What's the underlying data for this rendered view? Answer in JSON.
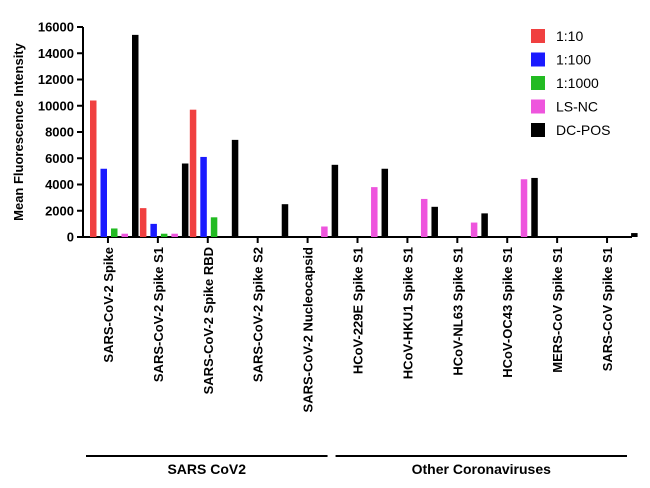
{
  "chart_data": {
    "type": "bar",
    "ylabel": "Mean Fluorescence Intensity",
    "ylim": [
      0,
      16000
    ],
    "yticks": [
      0,
      2000,
      4000,
      6000,
      8000,
      10000,
      12000,
      14000,
      16000
    ],
    "categories": [
      "SARS-CoV-2 Spike",
      "SARS-CoV-2 Spike S1",
      "SARS-CoV-2 Spike RBD",
      "SARS-CoV-2 Spike S2",
      "SARS-CoV-2 Nucleocapsid",
      "HCoV-229E Spike S1",
      "HCoV-HKU1 Spike S1",
      "HCoV-NL63 Spike S1",
      "HCoV-OC43 Spike S1",
      "MERS-CoV Spike S1",
      "SARS-CoV Spike S1"
    ],
    "series": [
      {
        "name": "1:10",
        "color": "#f04040",
        "values": [
          10400,
          2200,
          9700,
          0,
          0,
          0,
          0,
          0,
          0,
          0,
          0
        ]
      },
      {
        "name": "1:100",
        "color": "#1a1aff",
        "values": [
          5200,
          1000,
          6100,
          0,
          0,
          0,
          0,
          0,
          0,
          0,
          0
        ]
      },
      {
        "name": "1:1000",
        "color": "#22bb22",
        "values": [
          650,
          250,
          1500,
          0,
          0,
          0,
          0,
          0,
          0,
          0,
          0
        ]
      },
      {
        "name": "LS-NC",
        "color": "#ee55dd",
        "values": [
          250,
          250,
          0,
          0,
          800,
          3800,
          2900,
          1100,
          4400,
          0,
          0
        ]
      },
      {
        "name": "DC-POS",
        "color": "#000000",
        "values": [
          15400,
          5600,
          7400,
          2500,
          5500,
          5200,
          2300,
          1800,
          4500,
          0,
          300
        ]
      }
    ],
    "groups": [
      {
        "label": "SARS CoV2",
        "from": 0,
        "to": 4
      },
      {
        "label": "Other Coronaviruses",
        "from": 5,
        "to": 10
      }
    ],
    "legend_position": "top-right",
    "grid": false
  }
}
